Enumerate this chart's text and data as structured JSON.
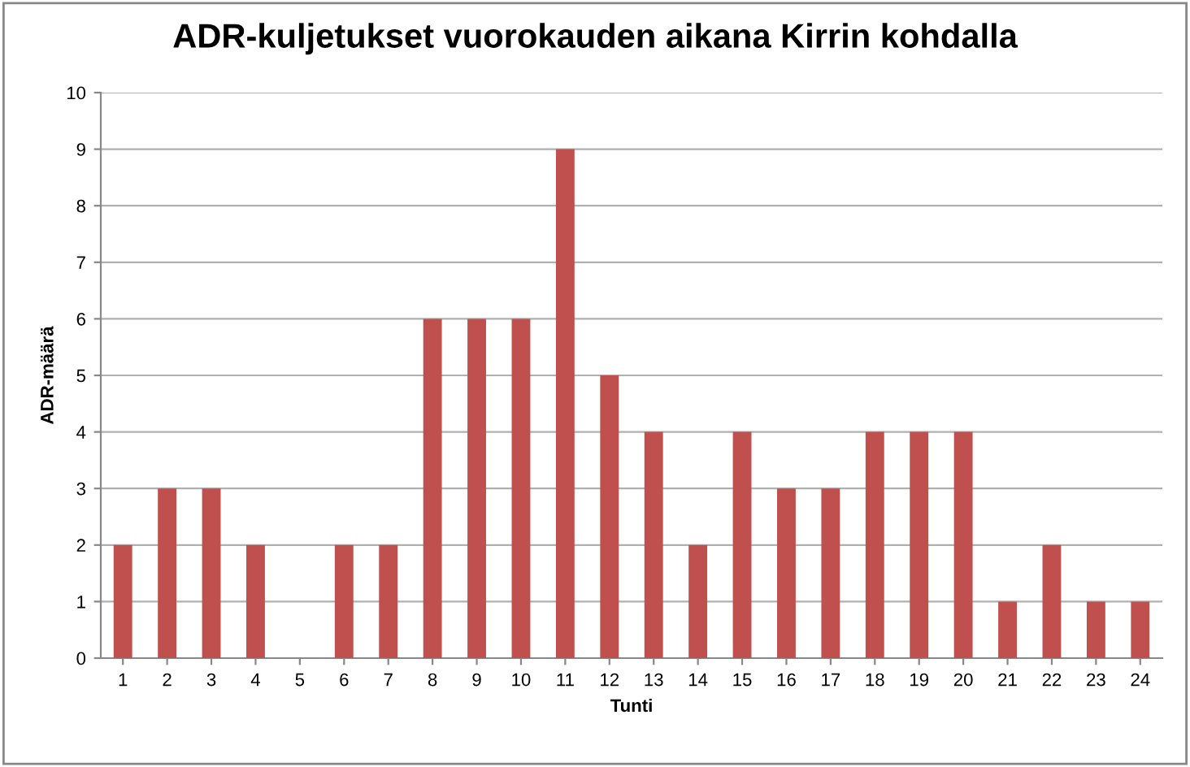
{
  "chart_data": {
    "type": "bar",
    "title": "ADR-kuljetukset vuorokauden aikana Kirrin kohdalla",
    "xlabel": "Tunti",
    "ylabel": "ADR-määrä",
    "categories": [
      "1",
      "2",
      "3",
      "4",
      "5",
      "6",
      "7",
      "8",
      "9",
      "10",
      "11",
      "12",
      "13",
      "14",
      "15",
      "16",
      "17",
      "18",
      "19",
      "20",
      "21",
      "22",
      "23",
      "24"
    ],
    "values": [
      2,
      3,
      3,
      2,
      0,
      2,
      2,
      6,
      6,
      6,
      9,
      5,
      4,
      2,
      4,
      3,
      3,
      4,
      4,
      4,
      1,
      2,
      1,
      1
    ],
    "color": "#c0504d",
    "ylim": [
      0,
      10
    ],
    "yticks": [
      0,
      1,
      2,
      3,
      4,
      5,
      6,
      7,
      8,
      9,
      10
    ],
    "grid": "y"
  }
}
